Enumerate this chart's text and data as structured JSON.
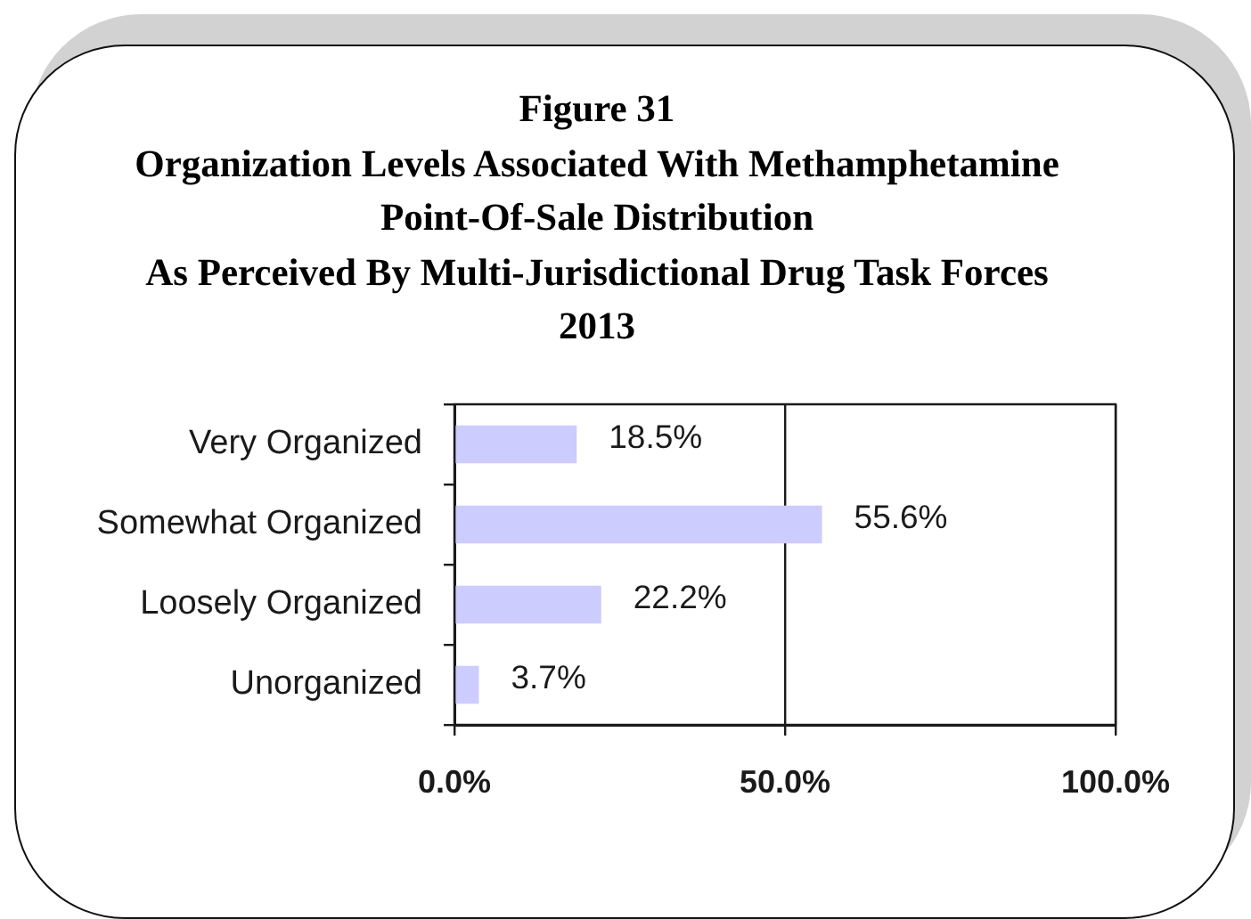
{
  "chart_data": {
    "type": "bar",
    "orientation": "horizontal",
    "title": "Figure 31",
    "subtitle": "Organization Levels Associated With Methamphetamine\nPoint-Of-Sale Distribution\nAs Perceived By Multi-Jurisdictional Drug Task Forces\n2013",
    "categories": [
      "Very Organized",
      "Somewhat Organized",
      "Loosely Organized",
      "Unorganized"
    ],
    "values": [
      18.5,
      55.6,
      22.2,
      3.7
    ],
    "color": "#ccccff",
    "value_labels": [
      "18.5%",
      "55.6%",
      "22.2%",
      "3.7%"
    ],
    "xlim": [
      0,
      100
    ],
    "xticks": [
      {
        "value": 0,
        "label": "0.0%"
      },
      {
        "value": 50,
        "label": "50.0%"
      },
      {
        "value": 100,
        "label": "100.0%"
      }
    ],
    "grid": "x"
  }
}
